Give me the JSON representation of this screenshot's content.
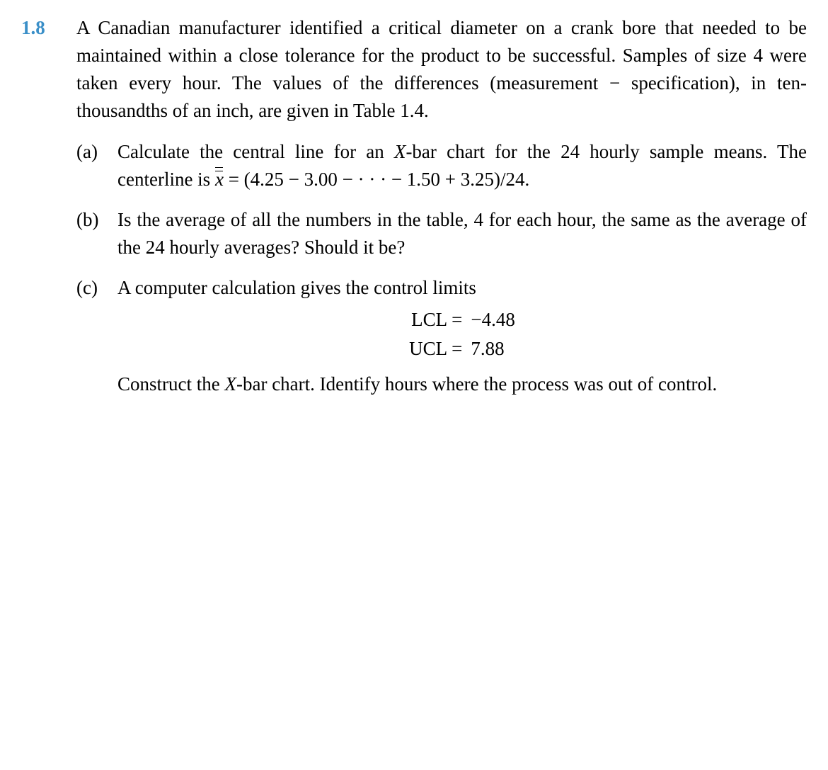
{
  "problem": {
    "number": "1.8",
    "intro": "A Canadian manufacturer identified a critical diameter on a crank bore that needed to be maintained within a close tolerance for the product to be successful. Samples of size 4 were taken every hour. The values of the differences (measurement − specification), in ten-thousandths of an inch, are given in Table 1.4."
  },
  "parts": {
    "a": {
      "label": "(a)",
      "lead": "Calculate the central line for an ",
      "xbar": "X",
      "after_xbar": "-bar chart for the 24 hourly sample means. The centerline is ",
      "sym": "x",
      "eq_text": " = (4.25 − 3.00 − · · · − 1.50 + 3.25)/24."
    },
    "b": {
      "label": "(b)",
      "text": "Is the average of all the numbers in the table, 4 for each hour, the same as the average of the 24 hourly averages? Should it be?"
    },
    "c": {
      "label": "(c)",
      "lead": "A computer calculation gives the control limits",
      "lcl_label": "LCL",
      "lcl_eq": "=",
      "lcl_val": "−4.48",
      "ucl_label": "UCL",
      "ucl_eq": "=",
      "ucl_val": "7.88",
      "after_lead": "Construct the ",
      "xbar": "X",
      "after_xbar": "-bar chart. Identify hours where the process was out of control."
    }
  }
}
